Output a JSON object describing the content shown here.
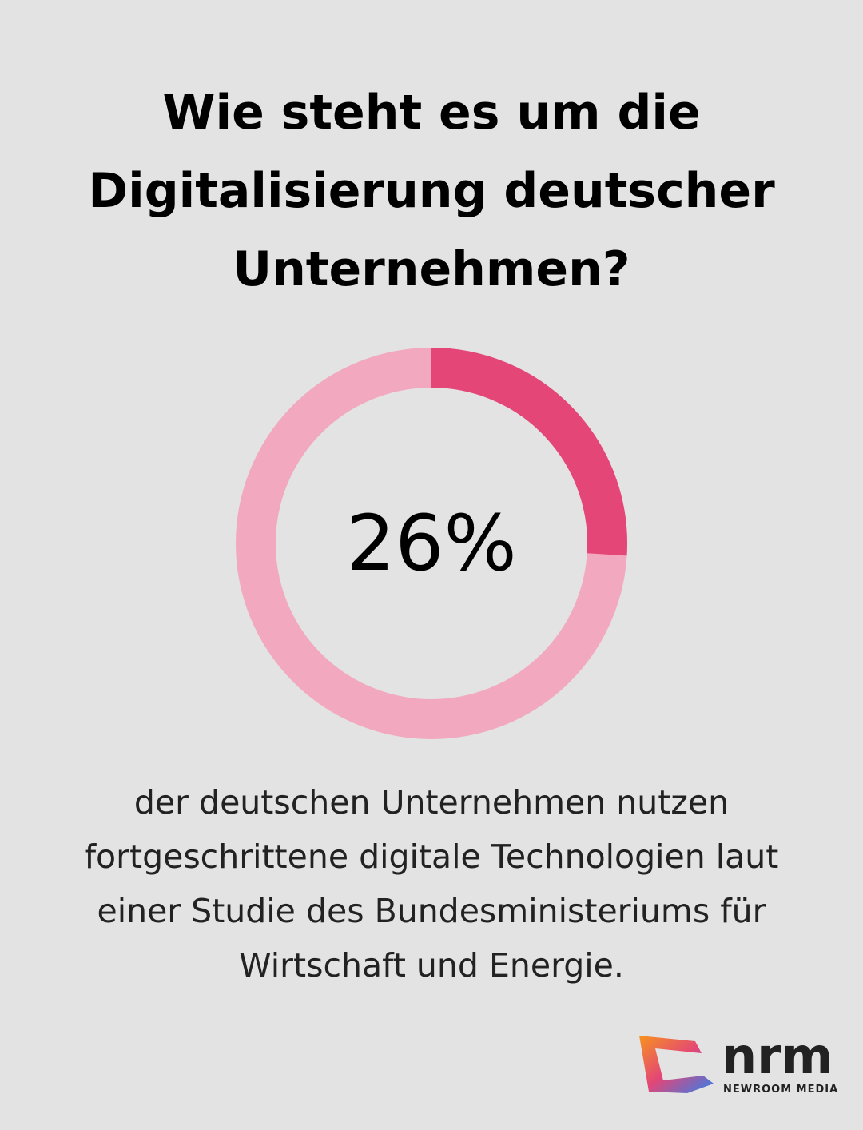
{
  "chart_data": {
    "type": "donut",
    "title": "Wie steht es um die Digitalisierung deutscher Unternehmen?",
    "values": [
      26
    ],
    "value_labels": [
      "26%"
    ],
    "color": "#e34677",
    "track_color": "#f2a9c0",
    "caption": "der deutschen Unternehmen nutzen fortgeschrittene digitale Technologien laut einer Studie des Bundesministeriums für Wirtschaft und Energie."
  },
  "logo": {
    "name": "nrm",
    "tagline": "NEWROOM MEDIA"
  }
}
